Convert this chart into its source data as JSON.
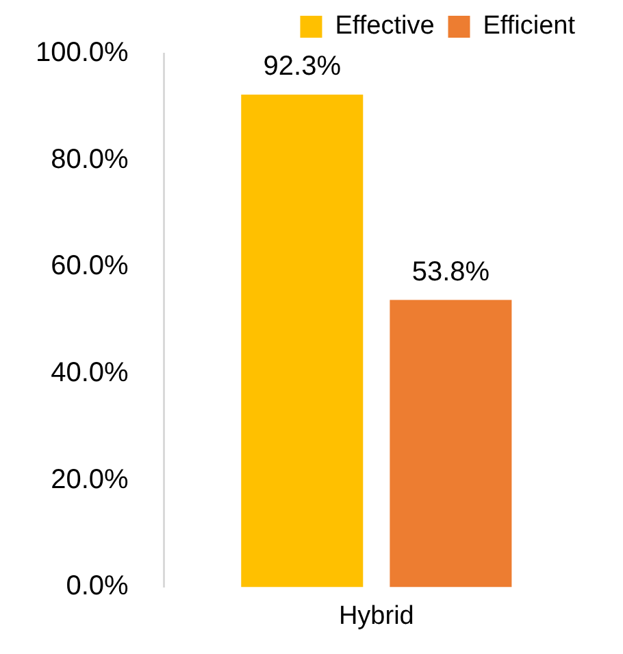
{
  "chart_data": {
    "type": "bar",
    "categories": [
      "Hybrid"
    ],
    "series": [
      {
        "name": "Effective",
        "color": "#ffc000",
        "values": [
          92.3
        ],
        "value_labels": [
          "92.3%"
        ]
      },
      {
        "name": "Efficient",
        "color": "#ed7d31",
        "values": [
          53.8
        ],
        "value_labels": [
          "53.8%"
        ]
      }
    ],
    "ylim": [
      0,
      100
    ],
    "yticks": [
      {
        "value": 0,
        "label": "0.0%"
      },
      {
        "value": 20,
        "label": "20.0%"
      },
      {
        "value": 40,
        "label": "40.0%"
      },
      {
        "value": 60,
        "label": "60.0%"
      },
      {
        "value": 80,
        "label": "80.0%"
      },
      {
        "value": 100,
        "label": "100.0%"
      }
    ],
    "grid": false,
    "legend": "top right"
  }
}
